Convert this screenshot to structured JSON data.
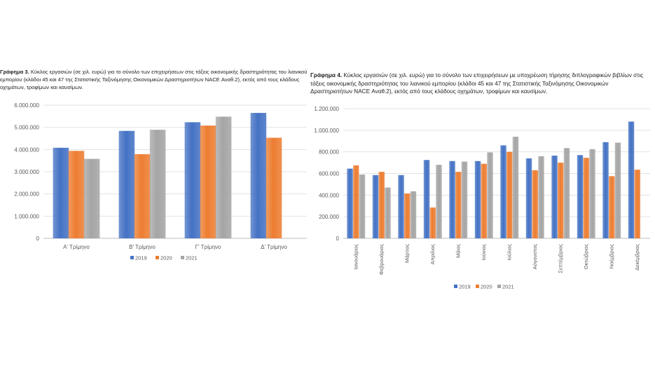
{
  "charts": [
    {
      "caption_prefix": "Γράφημα 3.",
      "caption_text": "Κύκλος εργασιών (σε χιλ. ευρώ) για το σύνολο των επιχειρήσεων στις τάξεις οικονομικής δραστηριότητας του λιανικού εμπορίου (κλάδοι 45 και 47 της Στατιστικής Ταξινόμησης Οικονομικών Δραστηριοτήτων NACE Αναθ.2), εκτός από τους κλάδους οχημάτων, τροφίμων και καυσίμων."
    },
    {
      "caption_prefix": "Γράφημα 4.",
      "caption_text": "Κύκλος εργασιών (σε χιλ. ευρώ) για το σύνολο των επιχειρήσεων με υποχρέωση τήρησης διπλογραφικών βιβλίων στις τάξεις οικονομικής δραστηριότητας του λιανικού εμπορίου (κλάδοι 45 και 47 της Στατιστικής Ταξινόμησης Οικονομικών Δραστηριοτήτων NACE Αναθ.2), εκτός από τους κλάδους οχημάτων, τροφίμων και καυσίμων."
    }
  ],
  "colors": {
    "2019": "#4472c4",
    "2020": "#ed7d31",
    "2021": "#a5a5a5"
  },
  "chart_data": [
    {
      "type": "bar",
      "categories": [
        "Α' Τρίμηνο",
        "Β' Τρίμηνο",
        "Γ' Τρίμηνο",
        "Δ' Τρίμηνο"
      ],
      "series": [
        {
          "name": "2019",
          "values": [
            4080000,
            4840000,
            5230000,
            5650000
          ]
        },
        {
          "name": "2020",
          "values": [
            3940000,
            3790000,
            5080000,
            4530000
          ]
        },
        {
          "name": "2021",
          "values": [
            3580000,
            4890000,
            5480000,
            null
          ]
        }
      ],
      "yticks": [
        "0",
        "1.000.000",
        "2.000.000",
        "3.000.000",
        "4.000.000",
        "5.000.000",
        "6.000.000"
      ],
      "ylim": [
        0,
        6000000
      ],
      "grid": true,
      "legend": "bottom",
      "xlabel": "",
      "ylabel": ""
    },
    {
      "type": "bar",
      "categories": [
        "Ιανουάριος",
        "Φεβρουάριος",
        "Μάρτιος",
        "Απρίλιος",
        "Μάιος",
        "Ιούνιος",
        "Ιούλιος",
        "Αύγουστος",
        "Σεπτέμβριος",
        "Οκτώβριος",
        "Νοέμβριος",
        "Δεκέμβριος"
      ],
      "series": [
        {
          "name": "2019",
          "values": [
            645000,
            585000,
            585000,
            725000,
            715000,
            715000,
            860000,
            740000,
            765000,
            770000,
            890000,
            1080000
          ]
        },
        {
          "name": "2020",
          "values": [
            675000,
            615000,
            415000,
            285000,
            615000,
            690000,
            800000,
            630000,
            700000,
            745000,
            575000,
            635000
          ]
        },
        {
          "name": "2021",
          "values": [
            590000,
            470000,
            435000,
            680000,
            710000,
            795000,
            940000,
            760000,
            835000,
            825000,
            885000,
            null
          ]
        }
      ],
      "yticks": [
        "0",
        "200.000",
        "400.000",
        "600.000",
        "800.000",
        "1.000.000",
        "1.200.000"
      ],
      "ylim": [
        0,
        1200000
      ],
      "grid": true,
      "legend": "bottom",
      "xlabel": "",
      "ylabel": ""
    }
  ]
}
